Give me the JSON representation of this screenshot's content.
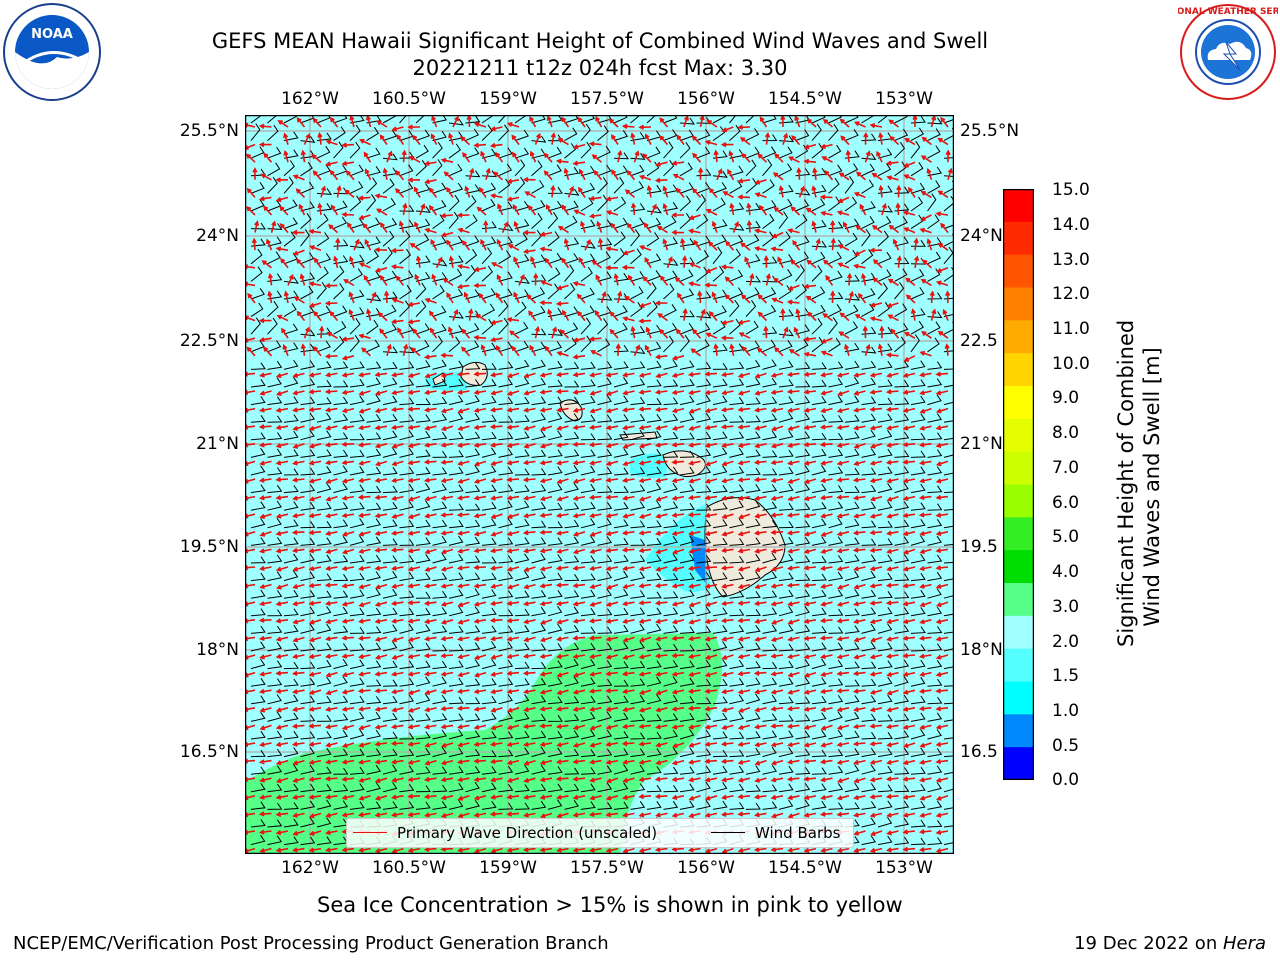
{
  "header": {
    "title_line1": "GEFS MEAN Hawaii Significant Height of Combined Wind Waves and Swell",
    "title_line2": "20221211 t12z 024h fcst   Max: 3.30"
  },
  "logos": {
    "left": {
      "name": "noaa-logo",
      "text": "NOAA"
    },
    "right": {
      "name": "nws-logo",
      "text": "NATIONAL WEATHER SERVICE"
    }
  },
  "map": {
    "lon_ticks": [
      "162°W",
      "160.5°W",
      "159°W",
      "157.5°W",
      "156°W",
      "154.5°W",
      "153°W"
    ],
    "lat_ticks_left": [
      "25.5°N",
      "24°N",
      "22.5°N",
      "21°N",
      "19.5°N",
      "18°N",
      "16.5°N"
    ],
    "lat_ticks_right": [
      "25.5°N",
      "24°N",
      "22.5",
      "21°N",
      "19.5",
      "18°N",
      "16.5"
    ],
    "ocean_color": "#a0ffff",
    "land_color": "#efebdc",
    "arrow_color": "#e8120f",
    "barb_color": "#000000"
  },
  "legend": {
    "primary_wave": "Primary Wave Direction (unscaled)",
    "wind_barbs": "Wind Barbs"
  },
  "colorbar": {
    "title_line1": "Significant Height of Combined",
    "title_line2": "Wind Waves and Swell [m]",
    "labels": [
      "15.0",
      "14.0",
      "13.0",
      "12.0",
      "11.0",
      "10.0",
      "9.0",
      "8.0",
      "7.0",
      "6.0",
      "5.0",
      "4.0",
      "3.0",
      "2.0",
      "1.5",
      "1.0",
      "0.5",
      "0.0"
    ],
    "colors": [
      "#ff0000",
      "#ff2a00",
      "#ff5500",
      "#ff7f00",
      "#ffaa00",
      "#ffd400",
      "#ffff00",
      "#e6ff00",
      "#ccff00",
      "#99ff00",
      "#33ee22",
      "#00dd00",
      "#55ff88",
      "#a0ffff",
      "#55ffff",
      "#00ffff",
      "#0088ff",
      "#0000ff"
    ]
  },
  "footer": {
    "sea_ice_note": "Sea Ice Concentration > 15% is shown in pink to yellow",
    "producer": "NCEP/EMC/Verification Post Processing Product Generation Branch",
    "date_prefix": "19 Dec 2022 on ",
    "host": "Hera"
  }
}
